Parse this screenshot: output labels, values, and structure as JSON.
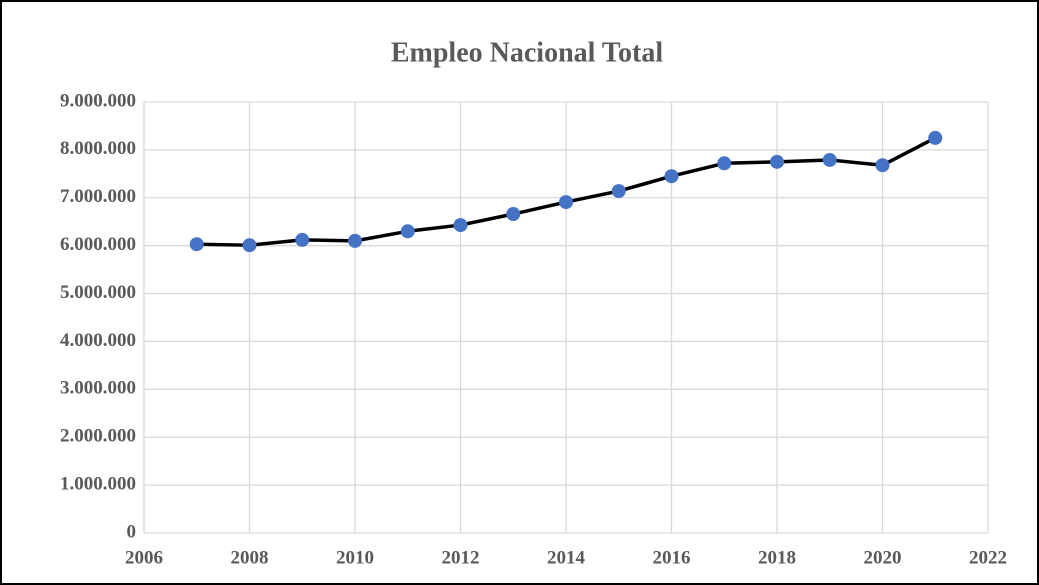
{
  "chart_data": {
    "type": "line",
    "title": "Empleo Nacional Total",
    "x": [
      2007,
      2008,
      2009,
      2010,
      2011,
      2012,
      2013,
      2014,
      2015,
      2016,
      2017,
      2018,
      2019,
      2020,
      2021
    ],
    "values": [
      6030000,
      6010000,
      6120000,
      6100000,
      6300000,
      6430000,
      6660000,
      6910000,
      7140000,
      7450000,
      7720000,
      7750000,
      7790000,
      7680000,
      8250000
    ],
    "color": "#4472c4",
    "line_color": "#000000",
    "xlim": [
      2006,
      2022
    ],
    "xticks": [
      2006,
      2008,
      2010,
      2012,
      2014,
      2016,
      2018,
      2020,
      2022
    ],
    "ylim": [
      0,
      9000000
    ],
    "yticks": [
      0,
      {
        "value": 1000000,
        "label": "1.000.000"
      },
      {
        "value": 2000000,
        "label": "2.000.000"
      },
      {
        "value": 3000000,
        "label": "3.000.000"
      },
      {
        "value": 4000000,
        "label": "4.000.000"
      },
      {
        "value": 5000000,
        "label": "5.000.000"
      },
      {
        "value": 6000000,
        "label": "6.000.000"
      },
      {
        "value": 7000000,
        "label": "7.000.000"
      },
      {
        "value": 8000000,
        "label": "8.000.000"
      },
      {
        "value": 9000000,
        "label": "9.000.000"
      }
    ],
    "grid": true
  }
}
